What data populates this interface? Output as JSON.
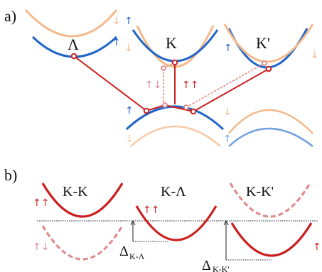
{
  "panel_a": {
    "label": "a)",
    "valleys": {
      "lambda": "Λ",
      "k": "K",
      "kprime": "K'"
    }
  },
  "panel_b": {
    "label": "b)",
    "titles": {
      "kk": "K-K",
      "klambda": "K-Λ",
      "kkprime": "K-K'"
    },
    "deltas": {
      "k_lambda": {
        "symbol": "Δ",
        "subscript": "K-Λ"
      },
      "k_kprime": {
        "symbol": "Δ",
        "subscript": "K-K'"
      }
    }
  },
  "spin_glyphs": {
    "up": "↑",
    "down": "↓",
    "up_up": "↑↑",
    "up_down": "↑↓"
  },
  "colors": {
    "blue_band": "#2166c8",
    "light_blue_band": "#6f9fe0",
    "orange_band": "#f4b98b",
    "light_orange_band": "#f7c8a6",
    "red": "#cc1f1f",
    "dashed_red": "#de8888",
    "dim_magenta": "#d98a9c"
  }
}
